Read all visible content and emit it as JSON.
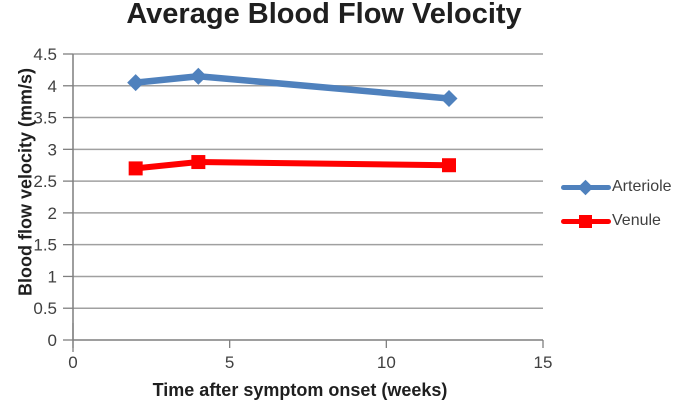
{
  "chart_data": {
    "type": "line",
    "title": "Average Blood Flow Velocity",
    "xlabel": "Time after symptom onset (weeks)",
    "ylabel": "Blood flow velocity (mm/s)",
    "xlim": [
      0,
      15
    ],
    "ylim": [
      0,
      4.5
    ],
    "xticks": [
      0,
      5,
      10,
      15
    ],
    "ytick_step": 0.5,
    "grid": true,
    "legend_position": "right",
    "series": [
      {
        "name": "Arteriole",
        "color": "#4F81BD",
        "marker": "diamond",
        "x": [
          2,
          4,
          12
        ],
        "values": [
          4.05,
          4.15,
          3.8
        ]
      },
      {
        "name": "Venule",
        "color": "#FF0000",
        "marker": "square",
        "x": [
          2,
          4,
          12
        ],
        "values": [
          2.7,
          2.8,
          2.75
        ]
      }
    ]
  }
}
